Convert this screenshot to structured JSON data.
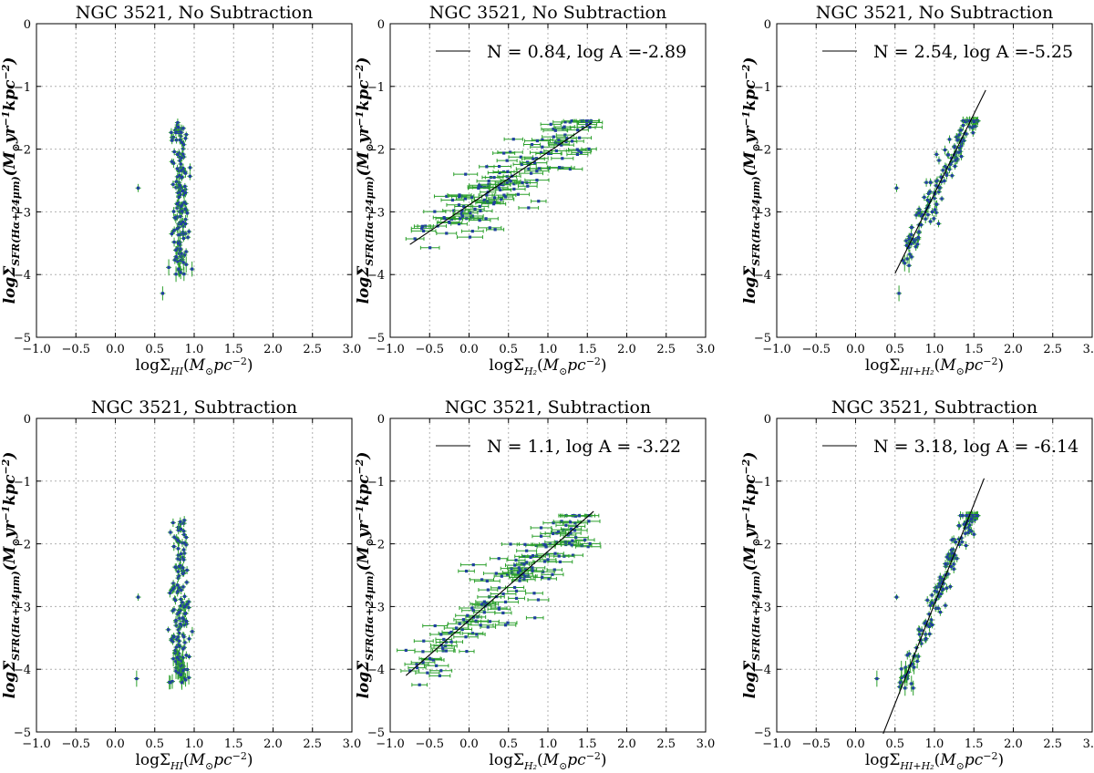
{
  "figure": {
    "chart_data": [
      {
        "type": "scatter",
        "title": "NGC 3521, No Subtraction",
        "xlabel": "logΣ_HI(M☉pc⁻²)",
        "ylabel": "logΣ_SFR(Hα+24μm)(M☉yr⁻¹kpc⁻²)",
        "xlim": [
          -1.0,
          3.0
        ],
        "ylim": [
          -5,
          0
        ],
        "grid": true,
        "legend": null,
        "cloud": {
          "x_center": 0.82,
          "x_spread": 0.09,
          "y_min": -4.0,
          "y_max": -1.55,
          "n": 150,
          "outliers": [
            [
              0.29,
              -2.62
            ],
            [
              0.6,
              -4.3
            ]
          ]
        }
      },
      {
        "type": "scatter",
        "title": "NGC 3521, No Subtraction",
        "xlabel": "logΣ_H2(M☉pc⁻²)",
        "ylabel": "logΣ_SFR(Hα+24μm)(M☉yr⁻¹kpc⁻²)",
        "xlim": [
          -1.0,
          3.0
        ],
        "ylim": [
          -5,
          0
        ],
        "grid": true,
        "fit": {
          "N": 0.84,
          "logA": -2.89,
          "x_range": [
            -0.75,
            1.55
          ]
        },
        "legend": {
          "label": "N = 0.84, log A =-2.89",
          "position": "top-right"
        },
        "cloud": {
          "x_min": -0.75,
          "x_max": 1.55,
          "scatter": 0.22,
          "n": 150,
          "outliers": []
        }
      },
      {
        "type": "scatter",
        "title": "NGC 3521, No Subtraction",
        "xlabel": "logΣ_HI+H2(M☉pc⁻²)",
        "ylabel": "logΣ_SFR(Hα+24μm)(M☉yr⁻¹kpc⁻²)",
        "xlim": [
          -1.0,
          3.0
        ],
        "ylim": [
          -5,
          0
        ],
        "grid": true,
        "fit": {
          "N": 2.54,
          "logA": -5.25,
          "x_range": [
            0.5,
            1.65
          ]
        },
        "legend": {
          "label": "N = 2.54, log A =-5.25",
          "position": "top-right"
        },
        "cloud": {
          "x_min": 0.6,
          "x_max": 1.55,
          "scatter": 0.18,
          "n": 150,
          "outliers": [
            [
              0.52,
              -2.62
            ],
            [
              0.55,
              -4.3
            ]
          ]
        }
      },
      {
        "type": "scatter",
        "title": "NGC 3521, Subtraction",
        "xlabel": "logΣ_HI(M☉pc⁻²)",
        "ylabel": "logΣ_SFR(Hα+24μm)(M☉yr⁻¹kpc⁻²)",
        "xlim": [
          -1.0,
          3.0
        ],
        "ylim": [
          -5,
          0
        ],
        "grid": true,
        "legend": null,
        "cloud": {
          "x_center": 0.82,
          "x_spread": 0.1,
          "y_min": -4.25,
          "y_max": -1.6,
          "n": 160,
          "outliers": [
            [
              0.29,
              -2.85
            ],
            [
              0.27,
              -4.15
            ]
          ]
        }
      },
      {
        "type": "scatter",
        "title": "NGC 3521, Subtraction",
        "xlabel": "logΣ_H2(M☉pc⁻²)",
        "ylabel": "logΣ_SFR(Hα+24μm)(M☉yr⁻¹kpc⁻²)",
        "xlim": [
          -1.0,
          3.0
        ],
        "ylim": [
          -5,
          0
        ],
        "grid": true,
        "fit": {
          "N": 1.1,
          "logA": -3.22,
          "x_range": [
            -0.8,
            1.58
          ]
        },
        "legend": {
          "label": "N = 1.1, log A = -3.22",
          "position": "top-right"
        },
        "cloud": {
          "x_min": -0.8,
          "x_max": 1.55,
          "scatter": 0.28,
          "n": 160,
          "outliers": []
        }
      },
      {
        "type": "scatter",
        "title": "NGC 3521, Subtraction",
        "xlabel": "logΣ_HI+H2(M☉pc⁻²)",
        "ylabel": "logΣ_SFR(Hα+24μm)(M☉yr⁻¹kpc⁻²)",
        "xlim": [
          -1.0,
          3.0
        ],
        "ylim": [
          -5,
          0
        ],
        "grid": true,
        "fit": {
          "N": 3.18,
          "logA": -6.14,
          "x_range": [
            0.35,
            1.63
          ]
        },
        "legend": {
          "label": "N = 3.18, log A = -6.14",
          "position": "top-right"
        },
        "cloud": {
          "x_min": 0.55,
          "x_max": 1.55,
          "scatter": 0.2,
          "n": 160,
          "outliers": [
            [
              0.27,
              -4.15
            ],
            [
              0.52,
              -2.85
            ]
          ]
        }
      }
    ],
    "x_ticks": [
      "−1.0",
      "−0.5",
      "0.0",
      "0.5",
      "1.0",
      "1.5",
      "2.0",
      "2.5",
      "3.0"
    ],
    "y_ticks": [
      "0",
      "−1",
      "−2",
      "−3",
      "−4",
      "−5"
    ],
    "colors": {
      "points": "#1f3f9f",
      "errorbars": "#2ca02c",
      "fit": "#000000",
      "grid": "#b0b0b0"
    }
  }
}
